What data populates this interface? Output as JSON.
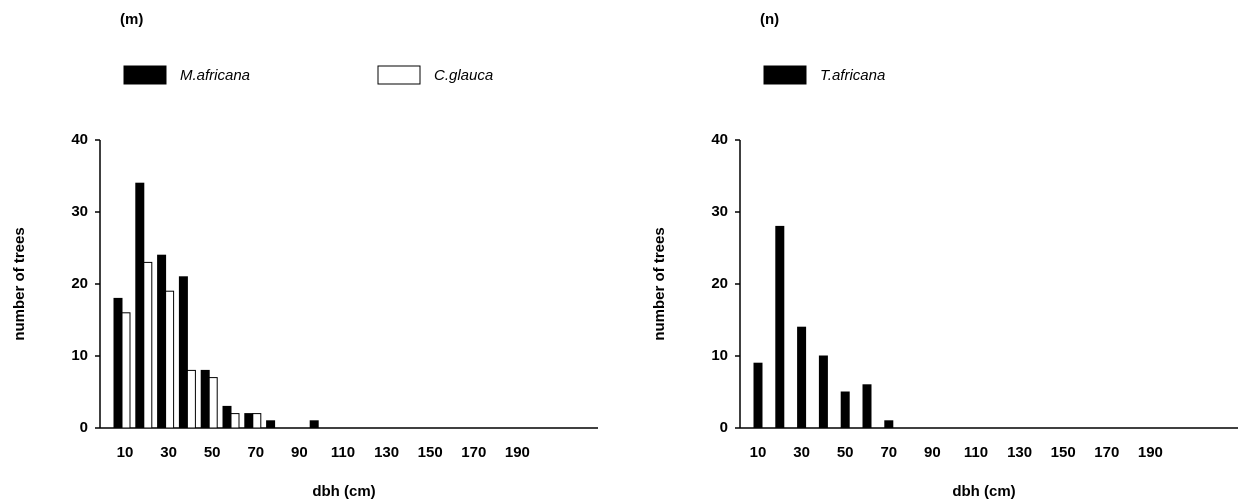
{
  "chart_data": [
    {
      "type": "bar",
      "panel_label": "(m)",
      "x_label": "dbh (cm)",
      "y_label": "number of trees",
      "categories": [
        "10",
        null,
        "30",
        null,
        "50",
        null,
        "70",
        null,
        "90",
        null,
        "110",
        null,
        "130",
        null,
        "150",
        null,
        "170",
        null,
        "190",
        null,
        null,
        null
      ],
      "series": [
        {
          "name": "M.africana",
          "color": "#000000",
          "values": [
            18,
            34,
            24,
            21,
            8,
            3,
            2,
            1,
            0,
            1,
            0,
            0,
            0,
            0,
            0,
            0,
            0,
            0,
            0,
            0,
            0,
            0
          ]
        },
        {
          "name": "C.glauca",
          "color": "#ffffff",
          "values": [
            16,
            23,
            19,
            8,
            7,
            2,
            2,
            0,
            0,
            0,
            0,
            0,
            0,
            0,
            0,
            0,
            0,
            0,
            0,
            0,
            0,
            0
          ]
        }
      ],
      "ylim": [
        0,
        40
      ],
      "yticks": [
        0,
        10,
        20,
        30,
        40
      ]
    },
    {
      "type": "bar",
      "panel_label": "(n)",
      "x_label": "dbh (cm)",
      "y_label": "number of trees",
      "categories": [
        "10",
        null,
        "30",
        null,
        "50",
        null,
        "70",
        null,
        "90",
        null,
        "110",
        null,
        "130",
        null,
        "150",
        null,
        "170",
        null,
        "190",
        null,
        null,
        null
      ],
      "series": [
        {
          "name": "T.africana",
          "color": "#000000",
          "values": [
            9,
            28,
            14,
            10,
            5,
            6,
            1,
            0,
            0,
            0,
            0,
            0,
            0,
            0,
            0,
            0,
            0,
            0,
            0,
            0,
            0,
            0
          ]
        }
      ],
      "ylim": [
        0,
        40
      ],
      "yticks": [
        0,
        10,
        20,
        30,
        40
      ]
    }
  ]
}
